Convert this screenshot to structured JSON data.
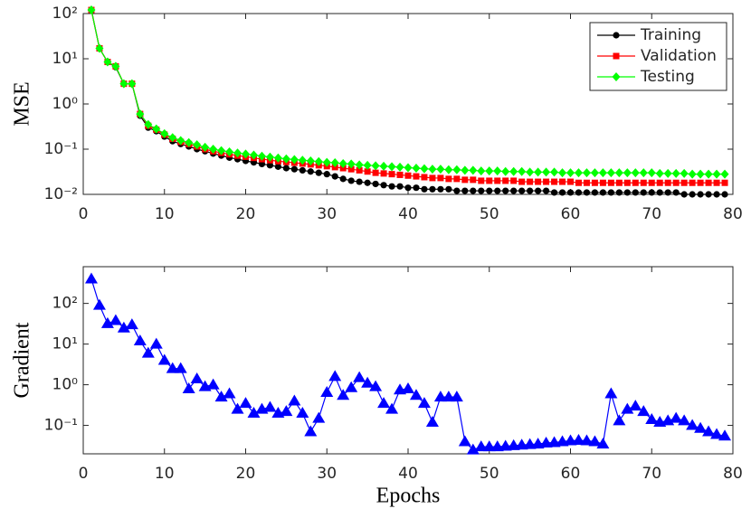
{
  "chart_data": [
    {
      "type": "line",
      "ylabel": "MSE",
      "log_y": true,
      "legend": "upper right",
      "x": [
        1,
        2,
        3,
        4,
        5,
        6,
        7,
        8,
        9,
        10,
        11,
        12,
        13,
        14,
        15,
        16,
        17,
        18,
        19,
        20,
        21,
        22,
        23,
        24,
        25,
        26,
        27,
        28,
        29,
        30,
        31,
        32,
        33,
        34,
        35,
        36,
        37,
        38,
        39,
        40,
        41,
        42,
        43,
        44,
        45,
        46,
        47,
        48,
        49,
        50,
        51,
        52,
        53,
        54,
        55,
        56,
        57,
        58,
        59,
        60,
        61,
        62,
        63,
        64,
        65,
        66,
        67,
        68,
        69,
        70,
        71,
        72,
        73,
        74,
        75,
        76,
        77,
        78,
        79
      ],
      "series": [
        {
          "name": "Training",
          "color": "#000000",
          "marker": "circle",
          "values": [
            120,
            17,
            8.5,
            6.5,
            2.8,
            2.8,
            0.55,
            0.3,
            0.25,
            0.19,
            0.15,
            0.13,
            0.115,
            0.1,
            0.09,
            0.08,
            0.072,
            0.065,
            0.06,
            0.055,
            0.051,
            0.047,
            0.044,
            0.041,
            0.038,
            0.036,
            0.034,
            0.032,
            0.03,
            0.028,
            0.025,
            0.022,
            0.02,
            0.019,
            0.018,
            0.017,
            0.016,
            0.015,
            0.015,
            0.014,
            0.014,
            0.013,
            0.013,
            0.013,
            0.013,
            0.012,
            0.012,
            0.012,
            0.012,
            0.012,
            0.012,
            0.012,
            0.012,
            0.012,
            0.012,
            0.012,
            0.012,
            0.011,
            0.011,
            0.011,
            0.011,
            0.011,
            0.011,
            0.011,
            0.011,
            0.011,
            0.011,
            0.011,
            0.011,
            0.011,
            0.011,
            0.011,
            0.011,
            0.01,
            0.01,
            0.01,
            0.01,
            0.01,
            0.01
          ]
        },
        {
          "name": "Validation",
          "color": "#ff0000",
          "marker": "square",
          "values": [
            120,
            17,
            8.5,
            6.8,
            2.8,
            2.8,
            0.6,
            0.33,
            0.27,
            0.21,
            0.17,
            0.145,
            0.13,
            0.115,
            0.1,
            0.09,
            0.083,
            0.077,
            0.072,
            0.068,
            0.064,
            0.06,
            0.057,
            0.054,
            0.052,
            0.05,
            0.048,
            0.046,
            0.044,
            0.042,
            0.04,
            0.038,
            0.036,
            0.034,
            0.032,
            0.03,
            0.029,
            0.028,
            0.027,
            0.026,
            0.025,
            0.024,
            0.023,
            0.023,
            0.022,
            0.022,
            0.021,
            0.021,
            0.02,
            0.02,
            0.02,
            0.02,
            0.02,
            0.019,
            0.019,
            0.019,
            0.019,
            0.019,
            0.019,
            0.019,
            0.018,
            0.018,
            0.018,
            0.018,
            0.018,
            0.018,
            0.018,
            0.018,
            0.018,
            0.018,
            0.018,
            0.018,
            0.018,
            0.018,
            0.018,
            0.018,
            0.018,
            0.018,
            0.018
          ]
        },
        {
          "name": "Testing",
          "color": "#00ff00",
          "marker": "diamond",
          "values": [
            120,
            17,
            8.5,
            6.8,
            2.8,
            2.8,
            0.6,
            0.35,
            0.28,
            0.22,
            0.18,
            0.155,
            0.14,
            0.125,
            0.11,
            0.1,
            0.093,
            0.087,
            0.082,
            0.078,
            0.074,
            0.07,
            0.067,
            0.064,
            0.061,
            0.059,
            0.057,
            0.055,
            0.053,
            0.051,
            0.05,
            0.048,
            0.047,
            0.045,
            0.044,
            0.043,
            0.042,
            0.041,
            0.04,
            0.039,
            0.038,
            0.037,
            0.036,
            0.036,
            0.035,
            0.035,
            0.034,
            0.034,
            0.033,
            0.033,
            0.033,
            0.032,
            0.032,
            0.032,
            0.031,
            0.031,
            0.031,
            0.031,
            0.03,
            0.03,
            0.03,
            0.03,
            0.03,
            0.03,
            0.03,
            0.03,
            0.03,
            0.03,
            0.03,
            0.03,
            0.029,
            0.029,
            0.029,
            0.029,
            0.028,
            0.028,
            0.028,
            0.028,
            0.028
          ]
        }
      ],
      "xlim": [
        0,
        80
      ],
      "xticks": [
        0,
        10,
        20,
        30,
        40,
        50,
        60,
        70,
        80
      ],
      "ylim": [
        0.01,
        100
      ],
      "yticks": [
        {
          "value": 0.01,
          "label": "10⁻²"
        },
        {
          "value": 0.1,
          "label": "10⁻¹"
        },
        {
          "value": 1,
          "label": "10⁰"
        },
        {
          "value": 10,
          "label": "10¹"
        },
        {
          "value": 100,
          "label": "10²"
        }
      ]
    },
    {
      "type": "line",
      "ylabel": "Gradient",
      "xlabel": "Epochs",
      "log_y": true,
      "x": [
        1,
        2,
        3,
        4,
        5,
        6,
        7,
        8,
        9,
        10,
        11,
        12,
        13,
        14,
        15,
        16,
        17,
        18,
        19,
        20,
        21,
        22,
        23,
        24,
        25,
        26,
        27,
        28,
        29,
        30,
        31,
        32,
        33,
        34,
        35,
        36,
        37,
        38,
        39,
        40,
        41,
        42,
        43,
        44,
        45,
        46,
        47,
        48,
        49,
        50,
        51,
        52,
        53,
        54,
        55,
        56,
        57,
        58,
        59,
        60,
        61,
        62,
        63,
        64,
        65,
        66,
        67,
        68,
        69,
        70,
        71,
        72,
        73,
        74,
        75,
        76,
        77,
        78,
        79
      ],
      "series": [
        {
          "color": "#0000ff",
          "marker": "triangle",
          "values": [
            400,
            90,
            32,
            38,
            25,
            30,
            12,
            6,
            10,
            4,
            2.5,
            2.5,
            0.8,
            1.4,
            0.9,
            1,
            0.5,
            0.6,
            0.25,
            0.35,
            0.2,
            0.25,
            0.28,
            0.2,
            0.22,
            0.4,
            0.2,
            0.07,
            0.15,
            0.65,
            1.6,
            0.55,
            0.85,
            1.5,
            1.1,
            0.9,
            0.35,
            0.25,
            0.75,
            0.8,
            0.55,
            0.35,
            0.12,
            0.5,
            0.5,
            0.5,
            0.04,
            0.025,
            0.03,
            0.03,
            0.03,
            0.031,
            0.032,
            0.033,
            0.034,
            0.035,
            0.037,
            0.038,
            0.04,
            0.042,
            0.043,
            0.042,
            0.04,
            0.035,
            0.6,
            0.13,
            0.25,
            0.3,
            0.22,
            0.14,
            0.12,
            0.13,
            0.15,
            0.13,
            0.1,
            0.085,
            0.07,
            0.06,
            0.055
          ]
        }
      ],
      "xlim": [
        0,
        80
      ],
      "xticks": [
        0,
        10,
        20,
        30,
        40,
        50,
        60,
        70,
        80
      ],
      "ylim": [
        0.02,
        800
      ],
      "yticks": [
        {
          "value": 0.1,
          "label": "10⁻¹"
        },
        {
          "value": 1,
          "label": "10⁰"
        },
        {
          "value": 10,
          "label": "10¹"
        },
        {
          "value": 100,
          "label": "10²"
        }
      ]
    }
  ]
}
